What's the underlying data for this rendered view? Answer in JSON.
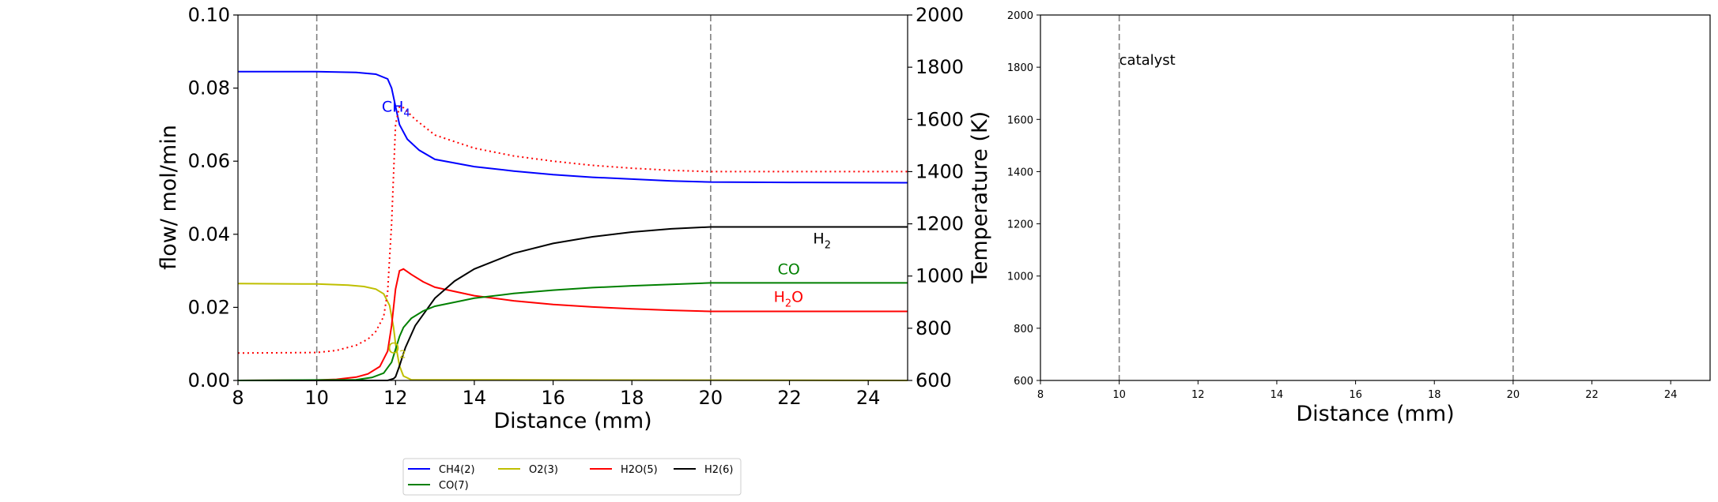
{
  "chart_data": [
    {
      "type": "line",
      "xlabel": "Distance (mm)",
      "ylabel": "flow/ mol/min",
      "y2label": "Temperature (K)",
      "xlim": [
        8,
        25
      ],
      "ylim": [
        0,
        0.1
      ],
      "y2lim": [
        600,
        2000
      ],
      "xticks": [
        "8",
        "10",
        "12",
        "14",
        "16",
        "18",
        "20",
        "22",
        "24"
      ],
      "yticks": [
        "0.00",
        "0.02",
        "0.04",
        "0.06",
        "0.08",
        "0.10"
      ],
      "y2ticks": [
        "600",
        "800",
        "1000",
        "1200",
        "1400",
        "1600",
        "1800",
        "2000"
      ],
      "vlines": [
        10,
        20
      ],
      "grid": false,
      "legend_position": "below",
      "series": [
        {
          "name": "CH4(2)",
          "color": "#0000ff",
          "axis": "left",
          "x": [
            8,
            10,
            11,
            11.5,
            11.8,
            11.9,
            12,
            12.1,
            12.3,
            12.6,
            13,
            14,
            15,
            16,
            17,
            18,
            19,
            20,
            22,
            25
          ],
          "values": [
            0.0845,
            0.0845,
            0.0843,
            0.0838,
            0.0825,
            0.08,
            0.075,
            0.07,
            0.066,
            0.063,
            0.0605,
            0.0585,
            0.0573,
            0.0563,
            0.0556,
            0.0551,
            0.0546,
            0.0543,
            0.0542,
            0.0541
          ]
        },
        {
          "name": "O2(3)",
          "color": "#bfbf00",
          "axis": "left",
          "x": [
            8,
            10,
            10.8,
            11.2,
            11.5,
            11.7,
            11.85,
            11.95,
            12,
            12.1,
            12.2,
            12.4,
            25
          ],
          "values": [
            0.0265,
            0.0264,
            0.0261,
            0.0257,
            0.025,
            0.0237,
            0.0205,
            0.0145,
            0.01,
            0.004,
            0.0012,
            0.0002,
            0.0
          ]
        },
        {
          "name": "H2O(5)",
          "color": "#ff0000",
          "axis": "left",
          "x": [
            8,
            10,
            10.5,
            11,
            11.3,
            11.6,
            11.8,
            11.9,
            12,
            12.1,
            12.2,
            12.4,
            12.7,
            13,
            14,
            15,
            16,
            17,
            18,
            19,
            20,
            22,
            25
          ],
          "values": [
            0,
            0.0001,
            0.0003,
            0.0009,
            0.0018,
            0.0038,
            0.008,
            0.015,
            0.025,
            0.03,
            0.0305,
            0.029,
            0.027,
            0.0255,
            0.0232,
            0.0218,
            0.0208,
            0.0201,
            0.0196,
            0.0192,
            0.0189,
            0.0189,
            0.0189
          ]
        },
        {
          "name": "H2(6)",
          "color": "#000000",
          "axis": "left",
          "x": [
            8,
            11.8,
            11.95,
            12,
            12.1,
            12.25,
            12.5,
            13,
            13.5,
            14,
            15,
            16,
            17,
            18,
            19,
            20,
            22,
            25
          ],
          "values": [
            0,
            0,
            0.0005,
            0.001,
            0.004,
            0.009,
            0.015,
            0.0225,
            0.0272,
            0.0305,
            0.0348,
            0.0375,
            0.0393,
            0.0406,
            0.0415,
            0.042,
            0.042,
            0.042
          ]
        },
        {
          "name": "CO(7)",
          "color": "#008000",
          "axis": "left",
          "x": [
            8,
            11,
            11.4,
            11.7,
            11.9,
            12,
            12.1,
            12.2,
            12.4,
            12.7,
            13,
            14,
            15,
            16,
            17,
            18,
            19,
            20,
            22,
            25
          ],
          "values": [
            0,
            0.0002,
            0.0008,
            0.002,
            0.005,
            0.0085,
            0.012,
            0.0145,
            0.017,
            0.019,
            0.0203,
            0.0225,
            0.0238,
            0.0247,
            0.0254,
            0.0259,
            0.0263,
            0.0267,
            0.0267,
            0.0267
          ]
        },
        {
          "name": "",
          "color": "#ff0000",
          "axis": "right",
          "dashed": true,
          "x": [
            8,
            10,
            10.5,
            11,
            11.3,
            11.5,
            11.7,
            11.8,
            11.9,
            12,
            12.1,
            12.2,
            12.5,
            13,
            14,
            15,
            16,
            17,
            18,
            19,
            20,
            22,
            25
          ],
          "values": [
            705,
            707,
            715,
            735,
            758,
            788,
            845,
            940,
            1200,
            1580,
            1650,
            1645,
            1600,
            1540,
            1490,
            1460,
            1440,
            1424,
            1413,
            1405,
            1400,
            1400,
            1400
          ]
        }
      ],
      "annotations": [
        {
          "text": "CH",
          "sub": "4",
          "x": 11.65,
          "y": 0.0735,
          "color": "#0000ff"
        },
        {
          "text": "O",
          "sub": "2",
          "x": 11.8,
          "y": 0.0075,
          "color": "#bfbf00"
        },
        {
          "text": "H",
          "sub": "2",
          "x": 22.6,
          "y": 0.0375,
          "color": "#000000"
        },
        {
          "text": "CO",
          "sub": "",
          "x": 21.7,
          "y": 0.029,
          "color": "#008000"
        },
        {
          "text": "H",
          "sub": "2",
          "tail": "O",
          "x": 21.6,
          "y": 0.0215,
          "color": "#ff0000"
        }
      ]
    },
    {
      "type": "line",
      "xlabel": "Distance (mm)",
      "xlim": [
        8,
        25
      ],
      "ylim": [
        600,
        2000
      ],
      "xticks": [
        "8",
        "10",
        "12",
        "14",
        "16",
        "18",
        "20",
        "22",
        "24"
      ],
      "yticks": [
        "600",
        "800",
        "1000",
        "1200",
        "1400",
        "1600",
        "1800",
        "2000"
      ],
      "vlines": [
        10,
        20
      ],
      "grid": false,
      "series": [],
      "annotations": [
        {
          "text": "catalyst",
          "x": 10.0,
          "y": 1810
        }
      ]
    }
  ]
}
